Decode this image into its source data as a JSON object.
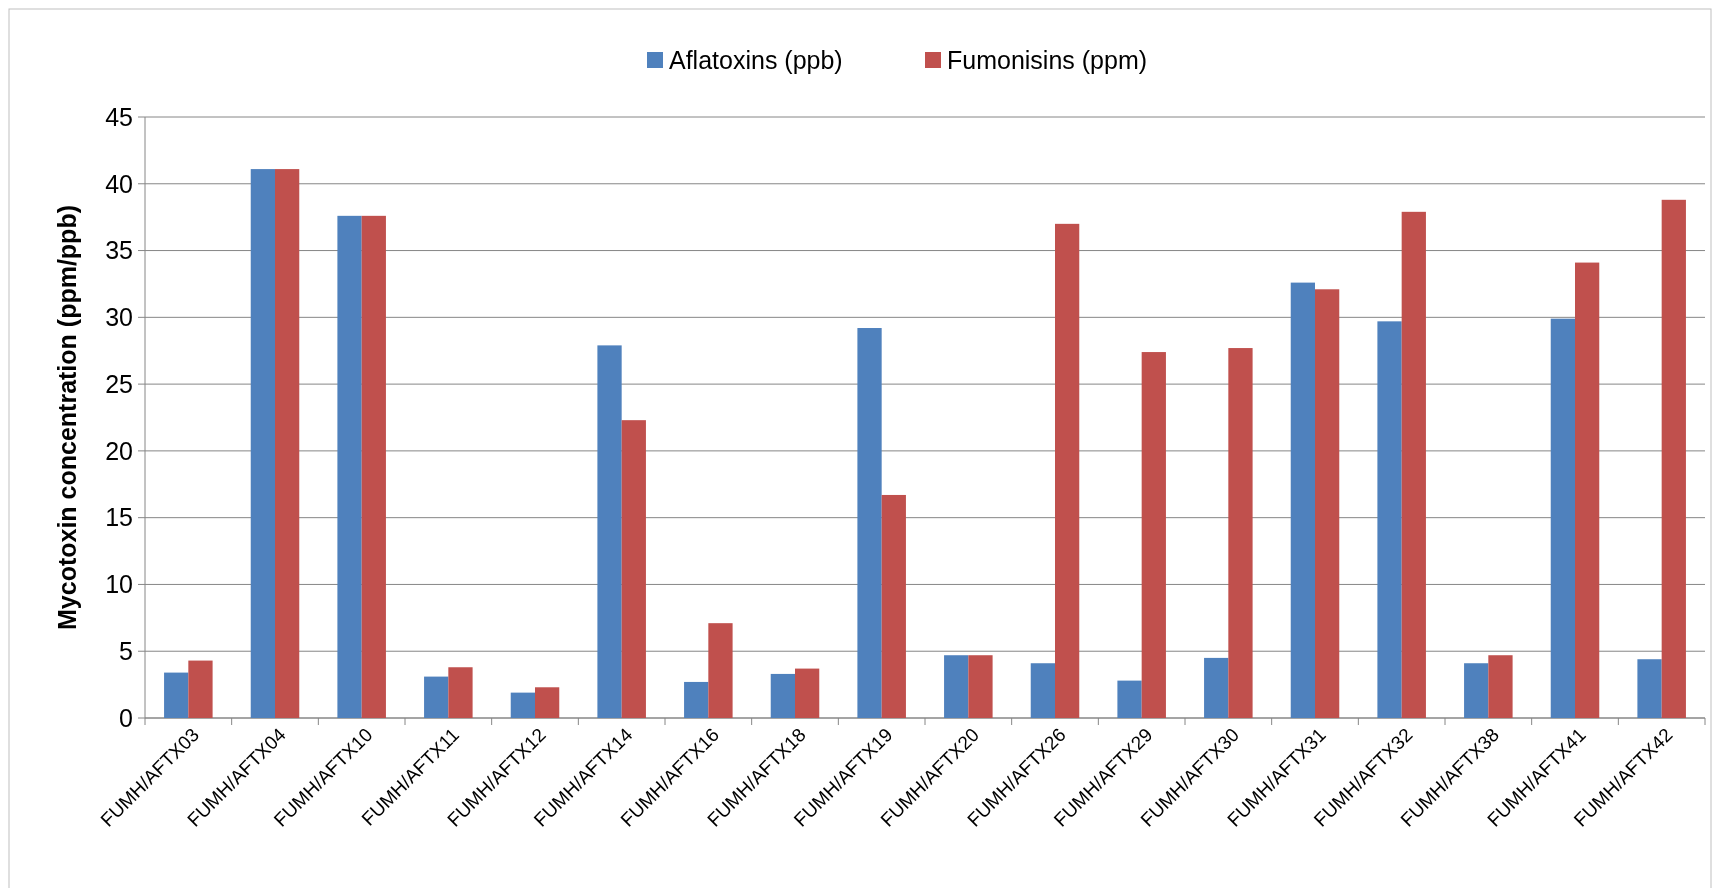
{
  "chart_data": {
    "type": "bar",
    "ylabel": "Mycotoxin concentration (ppm/ppb)",
    "categories": [
      "FUMH/AFTX03",
      "FUMH/AFTX04",
      "FUMH/AFTX10",
      "FUMH/AFTX11",
      "FUMH/AFTX12",
      "FUMH/AFTX14",
      "FUMH/AFTX16",
      "FUMH/AFTX18",
      "FUMH/AFTX19",
      "FUMH/AFTX20",
      "FUMH/AFTX26",
      "FUMH/AFTX29",
      "FUMH/AFTX30",
      "FUMH/AFTX31",
      "FUMH/AFTX32",
      "FUMH/AFTX38",
      "FUMH/AFTX41",
      "FUMH/AFTX42"
    ],
    "series": [
      {
        "name": "Aflatoxins (ppb)",
        "color": "#4f81bd",
        "values": [
          3.4,
          41.1,
          37.6,
          3.1,
          1.9,
          27.9,
          2.7,
          3.3,
          29.2,
          4.7,
          4.1,
          2.8,
          4.5,
          32.6,
          29.7,
          4.1,
          29.9,
          4.4
        ]
      },
      {
        "name": "Fumonisins (ppm)",
        "color": "#c0504d",
        "values": [
          4.3,
          41.1,
          37.6,
          3.8,
          2.3,
          22.3,
          7.1,
          3.7,
          16.7,
          4.7,
          37.0,
          27.4,
          27.7,
          32.1,
          37.9,
          4.7,
          34.1,
          38.8
        ]
      }
    ],
    "ylim": [
      0,
      45
    ],
    "yticks": [
      0,
      5,
      10,
      15,
      20,
      25,
      30,
      35,
      40,
      45
    ],
    "grid": "y",
    "legend": "top"
  }
}
